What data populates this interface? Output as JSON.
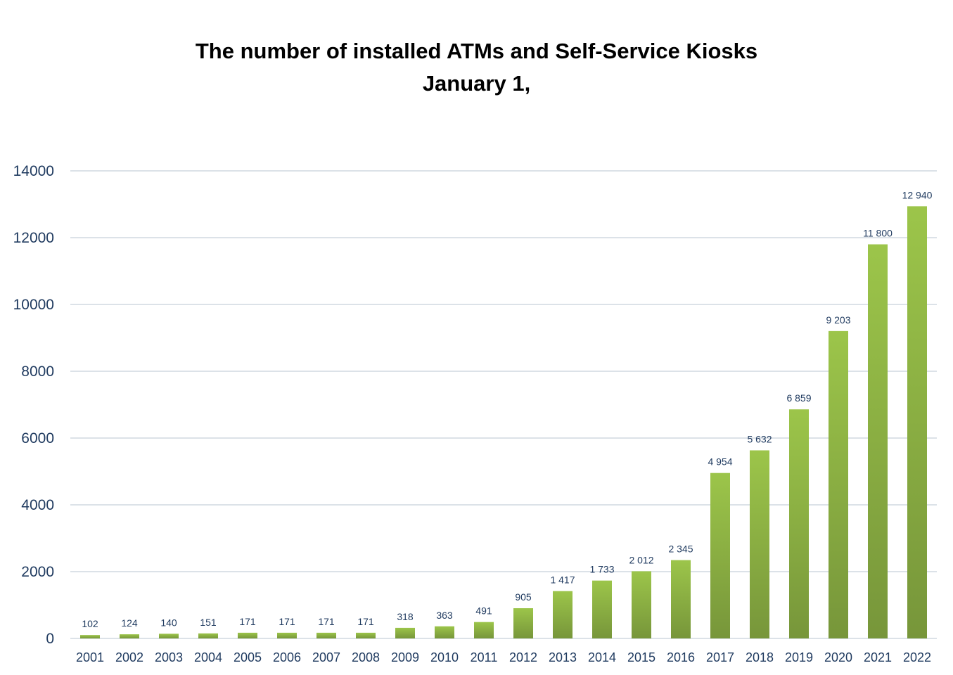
{
  "chart_data": {
    "type": "bar",
    "title": "The number of installed ATMs and Self-Service Kiosks",
    "subtitle": "January 1,",
    "xlabel": "",
    "ylabel": "",
    "ylim": [
      0,
      14000
    ],
    "yticks": [
      0,
      2000,
      4000,
      6000,
      8000,
      10000,
      12000,
      14000
    ],
    "grid": true,
    "legend": "none",
    "categories": [
      "2001",
      "2002",
      "2003",
      "2004",
      "2005",
      "2006",
      "2007",
      "2008",
      "2009",
      "2010",
      "2011",
      "2012",
      "2013",
      "2014",
      "2015",
      "2016",
      "2017",
      "2018",
      "2019",
      "2020",
      "2021",
      "2022"
    ],
    "values": [
      102,
      124,
      140,
      151,
      171,
      171,
      171,
      171,
      318,
      363,
      491,
      905,
      1417,
      1733,
      2012,
      2345,
      4954,
      5632,
      6859,
      9203,
      11800,
      12940
    ],
    "data_labels": [
      "102",
      "124",
      "140",
      "151",
      "171",
      "171",
      "171",
      "171",
      "318",
      "363",
      "491",
      "905",
      "1 417",
      "1 733",
      "2 012",
      "2 345",
      "4 954",
      "5 632",
      "6 859",
      "9 203",
      "11 800",
      "12 940"
    ],
    "colors": {
      "bar_top": "#9cc54a",
      "bar_bottom": "#77963a",
      "grid": "#d0d8e0",
      "text": "#1f3a5f"
    }
  }
}
